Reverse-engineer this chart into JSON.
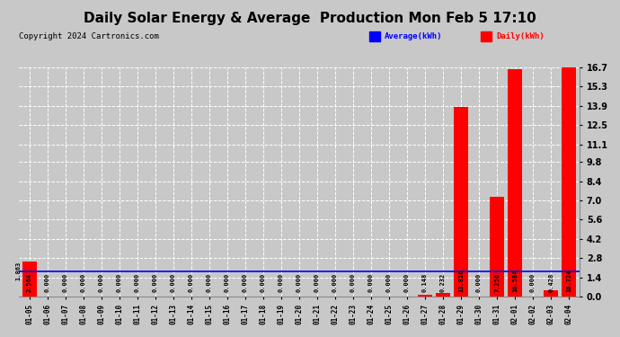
{
  "title": "Daily Solar Energy & Average  Production Mon Feb 5 17:10",
  "copyright": "Copyright 2024 Cartronics.com",
  "legend_avg": "Average(kWh)",
  "legend_daily": "Daily(kWh)",
  "dates": [
    "01-05",
    "01-06",
    "01-07",
    "01-08",
    "01-09",
    "01-10",
    "01-11",
    "01-12",
    "01-13",
    "01-14",
    "01-15",
    "01-16",
    "01-17",
    "01-18",
    "01-19",
    "01-20",
    "01-21",
    "01-22",
    "01-23",
    "01-24",
    "01-25",
    "01-26",
    "01-27",
    "01-28",
    "01-29",
    "01-30",
    "01-31",
    "02-01",
    "02-02",
    "02-03",
    "02-04"
  ],
  "values": [
    2.564,
    0.0,
    0.0,
    0.0,
    0.0,
    0.0,
    0.0,
    0.0,
    0.0,
    0.0,
    0.0,
    0.0,
    0.0,
    0.0,
    0.0,
    0.0,
    0.0,
    0.0,
    0.0,
    0.0,
    0.0,
    0.0,
    0.148,
    0.232,
    13.816,
    0.0,
    7.256,
    16.584,
    0.0,
    0.428,
    16.724
  ],
  "average": 1.863,
  "ylim": [
    0.0,
    16.7
  ],
  "yticks": [
    0.0,
    1.4,
    2.8,
    4.2,
    5.6,
    7.0,
    8.4,
    9.8,
    11.1,
    12.5,
    13.9,
    15.3,
    16.7
  ],
  "bar_color": "#ff0000",
  "avg_line_color": "#0000ff",
  "bg_color": "#c8c8c8",
  "plot_bg_color": "#c8c8c8",
  "grid_color": "#ffffff",
  "title_color": "#000000",
  "title_fontsize": 11,
  "copyright_color": "#000000",
  "copyright_fontsize": 6.5,
  "avg_legend_color": "#0000ff",
  "daily_legend_color": "#ff0000",
  "value_fontsize": 5.0,
  "avg_annotation": "1.863"
}
